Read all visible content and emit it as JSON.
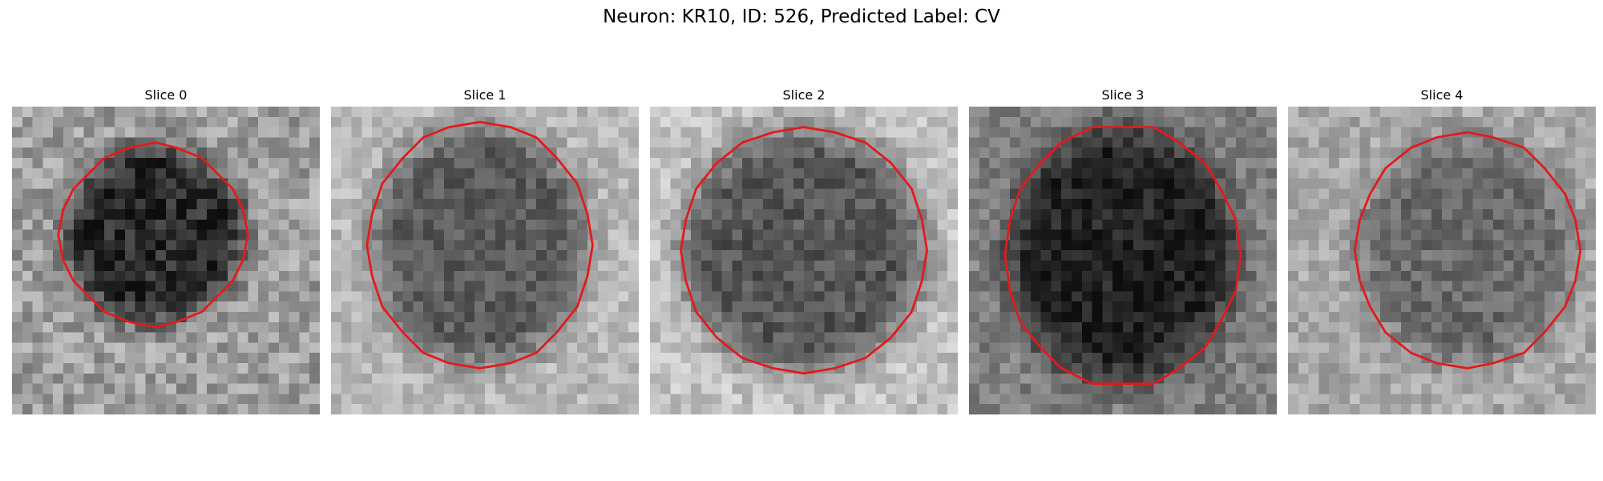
{
  "figure": {
    "title": "Neuron: KR10, ID: 526, Predicted Label: CV"
  },
  "panels": [
    {
      "title": "Slice 0"
    },
    {
      "title": "Slice 1"
    },
    {
      "title": "Slice 2"
    },
    {
      "title": "Slice 3"
    },
    {
      "title": "Slice 4"
    }
  ],
  "colors": {
    "contour": "#e31a1c"
  },
  "notes_visual": {
    "image_type": "grayscale microscopy crops",
    "overlay": "red contour outlining a dark roughly circular region in each slice"
  }
}
